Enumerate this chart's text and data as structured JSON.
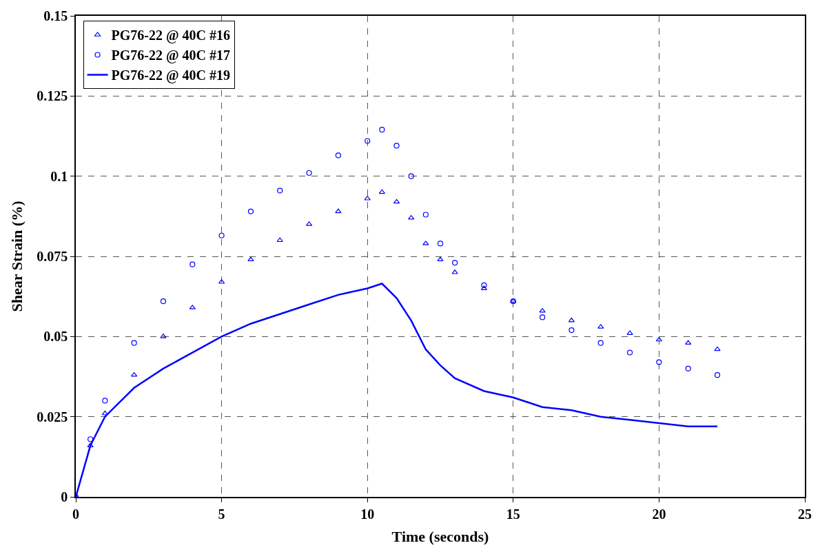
{
  "chart_data": {
    "type": "scatter",
    "xlabel": "Time (seconds)",
    "ylabel": "Shear Strain (%)",
    "xlim": [
      0,
      25
    ],
    "xticks": [
      0,
      5,
      10,
      15,
      20,
      25
    ],
    "ylim": [
      0,
      0.15
    ],
    "yticks": [
      0,
      0.025,
      0.05,
      0.075,
      0.1,
      0.125,
      0.15
    ],
    "grid": true,
    "legend": "top left",
    "series": [
      {
        "name": "PG76-22 @ 40C #16",
        "marker": "triangle",
        "color": "#0000ff",
        "x": [
          0,
          0.5,
          1,
          2,
          3,
          4,
          5,
          6,
          7,
          8,
          9,
          10,
          10.5,
          11,
          11.5,
          12,
          12.5,
          13,
          14,
          15,
          16,
          17,
          18,
          19,
          20,
          21,
          22
        ],
        "values": [
          0,
          0.016,
          0.026,
          0.038,
          0.05,
          0.059,
          0.067,
          0.074,
          0.08,
          0.085,
          0.089,
          0.093,
          0.095,
          0.092,
          0.087,
          0.079,
          0.074,
          0.07,
          0.065,
          0.061,
          0.058,
          0.055,
          0.053,
          0.051,
          0.049,
          0.048,
          0.046
        ]
      },
      {
        "name": "PG76-22 @ 40C #17",
        "marker": "circle",
        "color": "#0000ff",
        "x": [
          0,
          0.5,
          1,
          2,
          3,
          4,
          5,
          6,
          7,
          8,
          9,
          10,
          10.5,
          11,
          11.5,
          12,
          12.5,
          13,
          14,
          15,
          16,
          17,
          18,
          19,
          20,
          21,
          22
        ],
        "values": [
          0,
          0.018,
          0.03,
          0.048,
          0.061,
          0.0725,
          0.0815,
          0.089,
          0.0955,
          0.101,
          0.1065,
          0.111,
          0.1145,
          0.1095,
          0.1,
          0.088,
          0.079,
          0.073,
          0.066,
          0.061,
          0.056,
          0.052,
          0.048,
          0.045,
          0.042,
          0.04,
          0.038
        ]
      },
      {
        "name": "PG76-22 @ 40C #19",
        "type": "line",
        "marker": "none",
        "line_style": "solid",
        "color": "#0000ff",
        "x": [
          0,
          0.5,
          1,
          2,
          3,
          4,
          5,
          6,
          7,
          8,
          9,
          10,
          10.5,
          11,
          11.5,
          12,
          12.5,
          13,
          14,
          15,
          16,
          17,
          18,
          19,
          20,
          21,
          22
        ],
        "values": [
          0,
          0.016,
          0.025,
          0.034,
          0.04,
          0.045,
          0.05,
          0.054,
          0.057,
          0.06,
          0.063,
          0.065,
          0.0665,
          0.062,
          0.055,
          0.046,
          0.041,
          0.037,
          0.033,
          0.031,
          0.028,
          0.027,
          0.025,
          0.024,
          0.023,
          0.022,
          0.022
        ]
      }
    ]
  }
}
